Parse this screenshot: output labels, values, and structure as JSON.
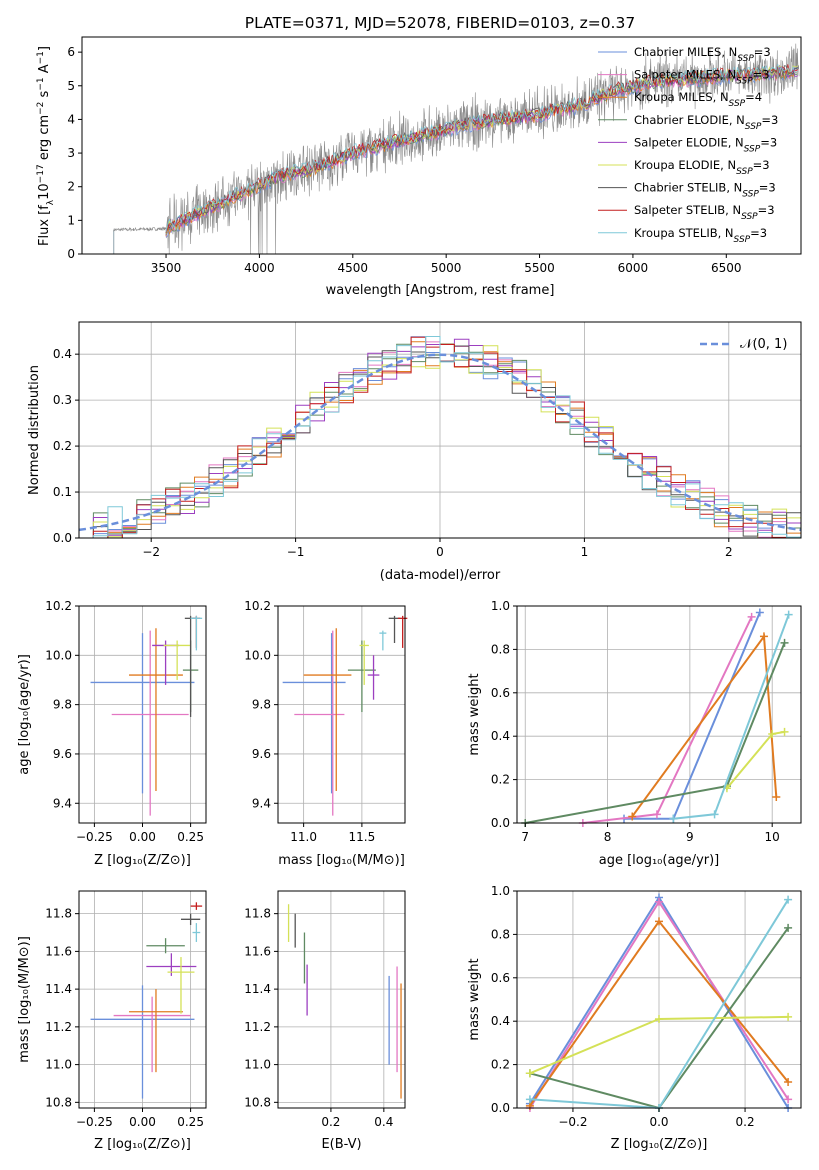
{
  "title": "PLATE=0371, MJD=52078, FIBERID=0103, z=0.37",
  "models": [
    {
      "name": "Chabrier MILES",
      "nssp": "3",
      "color": "#6a8fdb"
    },
    {
      "name": "Salpeter MILES",
      "nssp": "3",
      "color": "#e377c2"
    },
    {
      "name": "Kroupa MILES",
      "nssp": "4",
      "color": "#e07b20"
    },
    {
      "name": "Chabrier ELODIE",
      "nssp": "3",
      "color": "#5f8a62"
    },
    {
      "name": "Salpeter ELODIE",
      "nssp": "3",
      "color": "#9c3fc0"
    },
    {
      "name": "Kroupa ELODIE",
      "nssp": "3",
      "color": "#d4e157"
    },
    {
      "name": "Chabrier STELIB",
      "nssp": "3",
      "color": "#555555"
    },
    {
      "name": "Salpeter STELIB",
      "nssp": "3",
      "color": "#c41e1e"
    },
    {
      "name": "Kroupa STELIB",
      "nssp": "3",
      "color": "#7ec8d8"
    }
  ],
  "chart_data": [
    {
      "id": "spectrum",
      "type": "line",
      "xlabel": "wavelength [Angstrom, rest frame]",
      "ylabel": "Flux [f_λ 10^-17 erg cm^-2 s^-1 A^-1]",
      "xlim": [
        3050,
        6900
      ],
      "ylim": [
        0,
        6.45
      ],
      "xticks": [
        3500,
        4000,
        4500,
        5000,
        5500,
        6000,
        6500
      ],
      "yticks": [
        0,
        1,
        2,
        3,
        4,
        5,
        6
      ],
      "legend_loc": "right",
      "observed": {
        "x": [
          3220,
          3500,
          3800,
          3950,
          4100,
          4300,
          4500,
          4700,
          4900,
          5100,
          5300,
          5500,
          5700,
          5900,
          6100,
          6300,
          6500,
          6700,
          6890
        ],
        "y": [
          0.72,
          0.75,
          1.55,
          1.9,
          2.3,
          2.55,
          3.0,
          3.3,
          3.55,
          3.85,
          4.0,
          4.15,
          4.4,
          4.85,
          5.1,
          5.2,
          5.3,
          5.35,
          5.45
        ]
      },
      "model_xrange": [
        3500,
        6890
      ]
    },
    {
      "id": "residuals",
      "type": "histogram",
      "xlabel": "(data-model)/error",
      "ylabel": "Normed distribution",
      "xlim": [
        -2.5,
        2.5
      ],
      "ylim": [
        0,
        0.47
      ],
      "xticks": [
        -2,
        -1,
        0,
        1,
        2
      ],
      "yticks": [
        0.0,
        0.1,
        0.2,
        0.3,
        0.4
      ],
      "reference_label": "N(0,1)",
      "legend_loc": "upper right",
      "bin_width": 0.1
    },
    {
      "id": "age_vs_Z",
      "type": "errorbar",
      "xlabel": "Z [log10(Z/Z_sun)]",
      "ylabel": "age [log10(age/yr)]",
      "xlim": [
        -0.33,
        0.33
      ],
      "ylim": [
        9.32,
        10.2
      ],
      "xticks": [
        -0.25,
        0.0,
        0.25
      ],
      "yticks": [
        9.4,
        9.6,
        9.8,
        10.0,
        10.2
      ],
      "points": [
        {
          "x": 0.0,
          "xerr": [
            0.27,
            0.27
          ],
          "y": 9.89,
          "yerr": [
            0.45,
            0.2
          ]
        },
        {
          "x": 0.04,
          "xerr": [
            0.2,
            0.2
          ],
          "y": 9.76,
          "yerr": [
            0.41,
            0.34
          ]
        },
        {
          "x": 0.07,
          "xerr": [
            0.14,
            0.14
          ],
          "y": 9.92,
          "yerr": [
            0.47,
            0.19
          ]
        },
        {
          "x": 0.25,
          "xerr": [
            0.04,
            0.04
          ],
          "y": 9.94,
          "yerr": [
            0.17,
            0.12
          ]
        },
        {
          "x": 0.12,
          "xerr": [
            0.07,
            0.07
          ],
          "y": 10.04,
          "yerr": [
            0.16,
            0.02
          ]
        },
        {
          "x": 0.18,
          "xerr": [
            0.07,
            0.07
          ],
          "y": 10.04,
          "yerr": [
            0.14,
            0.02
          ]
        },
        {
          "x": 0.25,
          "xerr": [
            0.03,
            0.03
          ],
          "y": 10.15,
          "yerr": [
            0.4,
            0.01
          ]
        },
        {
          "x": 0.28,
          "xerr": [
            0.02,
            0.02
          ],
          "y": 10.15,
          "yerr": [
            0.12,
            0.01
          ]
        },
        {
          "x": 0.28,
          "xerr": [
            0.03,
            0.03
          ],
          "y": 10.15,
          "yerr": [
            0.13,
            0.01
          ]
        }
      ]
    },
    {
      "id": "age_vs_mass",
      "type": "errorbar",
      "xlabel": "mass [log10(M/M_sun)]",
      "ylabel": "",
      "xlim": [
        10.78,
        11.87
      ],
      "ylim": [
        9.32,
        10.2
      ],
      "xticks": [
        11.0,
        11.5
      ],
      "yticks": [
        9.4,
        9.6,
        9.8,
        10.0,
        10.2
      ],
      "points": [
        {
          "x": 11.24,
          "xerr": [
            0.42,
            0.12
          ],
          "y": 9.89,
          "yerr": [
            0.45,
            0.2
          ]
        },
        {
          "x": 11.25,
          "xerr": [
            0.33,
            0.1
          ],
          "y": 9.76,
          "yerr": [
            0.41,
            0.34
          ]
        },
        {
          "x": 11.28,
          "xerr": [
            0.28,
            0.13
          ],
          "y": 9.92,
          "yerr": [
            0.47,
            0.19
          ]
        },
        {
          "x": 11.5,
          "xerr": [
            0.12,
            0.12
          ],
          "y": 9.94,
          "yerr": [
            0.17,
            0.12
          ]
        },
        {
          "x": 11.6,
          "xerr": [
            0.05,
            0.05
          ],
          "y": 9.92,
          "yerr": [
            0.1,
            0.08
          ]
        },
        {
          "x": 11.52,
          "xerr": [
            0.04,
            0.04
          ],
          "y": 10.04,
          "yerr": [
            0.16,
            0.02
          ]
        },
        {
          "x": 11.78,
          "xerr": [
            0.05,
            0.05
          ],
          "y": 10.15,
          "yerr": [
            0.1,
            0.01
          ]
        },
        {
          "x": 11.85,
          "xerr": [
            0.04,
            0.04
          ],
          "y": 10.15,
          "yerr": [
            0.12,
            0.01
          ]
        },
        {
          "x": 11.68,
          "xerr": [
            0.03,
            0.03
          ],
          "y": 10.09,
          "yerr": [
            0.07,
            0.01
          ]
        }
      ]
    },
    {
      "id": "massweight_vs_age",
      "type": "line",
      "xlabel": "age [log10(age/yr)]",
      "ylabel": "mass weight",
      "xlim": [
        6.9,
        10.35
      ],
      "ylim": [
        0,
        1.0
      ],
      "xticks": [
        7,
        8,
        9,
        10
      ],
      "yticks": [
        0.0,
        0.2,
        0.4,
        0.6,
        0.8,
        1.0
      ],
      "series": [
        {
          "x": [
            8.2,
            8.8,
            9.85
          ],
          "y": [
            0.02,
            0.02,
            0.97
          ]
        },
        {
          "x": [
            7.7,
            8.6,
            9.75
          ],
          "y": [
            0.0,
            0.04,
            0.95
          ]
        },
        {
          "x": [
            8.3,
            9.9,
            10.05
          ],
          "y": [
            0.03,
            0.86,
            0.12
          ]
        },
        {
          "x": [
            7.0,
            9.45,
            10.15
          ],
          "y": [
            0.0,
            0.17,
            0.83
          ]
        },
        {
          "x": [
            9.45,
            10.0,
            10.15
          ],
          "y": [
            0.16,
            0.41,
            0.42
          ]
        },
        {
          "x": [
            8.8,
            9.3,
            10.2
          ],
          "y": [
            0.02,
            0.04,
            0.96
          ]
        }
      ]
    },
    {
      "id": "mass_vs_Z",
      "type": "errorbar",
      "xlabel": "Z [log10(Z/Z_sun)]",
      "ylabel": "mass [log10(M/M_sun)]",
      "xlim": [
        -0.33,
        0.33
      ],
      "ylim": [
        10.77,
        11.92
      ],
      "xticks": [
        -0.25,
        0.0,
        0.25
      ],
      "yticks": [
        10.8,
        11.0,
        11.2,
        11.4,
        11.6,
        11.8
      ],
      "points": [
        {
          "x": 0.0,
          "xerr": [
            0.27,
            0.27
          ],
          "y": 11.24,
          "yerr": [
            0.42,
            0.18
          ]
        },
        {
          "x": 0.05,
          "xerr": [
            0.2,
            0.2
          ],
          "y": 11.26,
          "yerr": [
            0.3,
            0.1
          ]
        },
        {
          "x": 0.07,
          "xerr": [
            0.14,
            0.14
          ],
          "y": 11.28,
          "yerr": [
            0.32,
            0.12
          ]
        },
        {
          "x": 0.12,
          "xerr": [
            0.1,
            0.1
          ],
          "y": 11.63,
          "yerr": [
            0.04,
            0.04
          ]
        },
        {
          "x": 0.15,
          "xerr": [
            0.13,
            0.13
          ],
          "y": 11.52,
          "yerr": [
            0.05,
            0.07
          ]
        },
        {
          "x": 0.2,
          "xerr": [
            0.07,
            0.07
          ],
          "y": 11.49,
          "yerr": [
            0.22,
            0.08
          ]
        },
        {
          "x": 0.25,
          "xerr": [
            0.05,
            0.05
          ],
          "y": 11.77,
          "yerr": [
            0.03,
            0.03
          ]
        },
        {
          "x": 0.28,
          "xerr": [
            0.03,
            0.03
          ],
          "y": 11.84,
          "yerr": [
            0.02,
            0.02
          ]
        },
        {
          "x": 0.28,
          "xerr": [
            0.02,
            0.02
          ],
          "y": 11.7,
          "yerr": [
            0.05,
            0.05
          ]
        }
      ]
    },
    {
      "id": "mass_vs_ebv",
      "type": "errorbar",
      "xlabel": "E(B-V)",
      "ylabel": "",
      "xlim": [
        0.0,
        0.48
      ],
      "ylim": [
        10.77,
        11.92
      ],
      "xticks": [
        0.2,
        0.4
      ],
      "yticks": [
        10.8,
        11.0,
        11.2,
        11.4,
        11.6,
        11.8
      ],
      "points": [
        {
          "x": 0.42,
          "y": 11.2,
          "yerr": [
            0.2,
            0.27
          ]
        },
        {
          "x": 0.45,
          "y": 11.24,
          "yerr": [
            0.28,
            0.28
          ]
        },
        {
          "x": 0.465,
          "y": 11.12,
          "yerr": [
            0.3,
            0.31
          ]
        },
        {
          "x": 0.1,
          "y": 11.55,
          "yerr": [
            0.12,
            0.15
          ]
        },
        {
          "x": 0.11,
          "y": 11.43,
          "yerr": [
            0.17,
            0.1
          ]
        },
        {
          "x": 0.04,
          "y": 11.7,
          "yerr": [
            0.05,
            0.15
          ]
        },
        {
          "x": 0.065,
          "y": 11.72,
          "yerr": [
            0.1,
            0.08
          ]
        }
      ]
    },
    {
      "id": "massweight_vs_Z",
      "type": "line",
      "xlabel": "Z [log10(Z/Z_sun)]",
      "ylabel": "mass weight",
      "xlim": [
        -0.33,
        0.33
      ],
      "ylim": [
        0,
        1.0
      ],
      "xticks": [
        -0.2,
        0.0,
        0.2
      ],
      "yticks": [
        0.0,
        0.2,
        0.4,
        0.6,
        0.8,
        1.0
      ],
      "series": [
        {
          "x": [
            -0.3,
            0.0,
            0.3
          ],
          "y": [
            0.02,
            0.97,
            0.0
          ]
        },
        {
          "x": [
            -0.3,
            0.0,
            0.3
          ],
          "y": [
            0.0,
            0.95,
            0.04
          ]
        },
        {
          "x": [
            -0.3,
            0.0,
            0.3
          ],
          "y": [
            0.01,
            0.86,
            0.12
          ]
        },
        {
          "x": [
            -0.3,
            0.0,
            0.3
          ],
          "y": [
            0.16,
            0.0,
            0.83
          ]
        },
        {
          "x": [
            -0.3,
            0.0,
            0.3
          ],
          "y": [
            0.16,
            0.41,
            0.42
          ]
        },
        {
          "x": [
            -0.3,
            0.0,
            0.3
          ],
          "y": [
            0.04,
            0.0,
            0.96
          ]
        }
      ]
    }
  ]
}
